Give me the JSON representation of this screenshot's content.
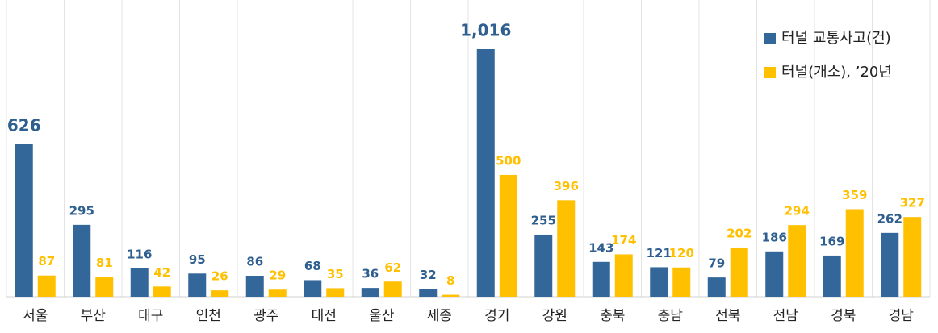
{
  "chart_data": {
    "type": "bar",
    "categories": [
      "서울",
      "부산",
      "대구",
      "인천",
      "광주",
      "대전",
      "울산",
      "세종",
      "경기",
      "강원",
      "충북",
      "충남",
      "전북",
      "전남",
      "경북",
      "경남"
    ],
    "series": [
      {
        "name": "터널 교통사고(건)",
        "color": "#336699",
        "values": [
          626,
          295,
          116,
          95,
          86,
          68,
          36,
          32,
          1016,
          255,
          143,
          121,
          79,
          186,
          169,
          262
        ],
        "value_labels": [
          "626",
          "295",
          "116",
          "95",
          "86",
          "68",
          "36",
          "32",
          "1,016",
          "255",
          "143",
          "121",
          "79",
          "186",
          "169",
          "262"
        ]
      },
      {
        "name": "터널(개소), ’20년",
        "color": "#ffc000",
        "values": [
          87,
          81,
          42,
          26,
          29,
          35,
          62,
          8,
          500,
          396,
          174,
          120,
          202,
          294,
          359,
          327
        ]
      }
    ],
    "legend": "top-right"
  }
}
